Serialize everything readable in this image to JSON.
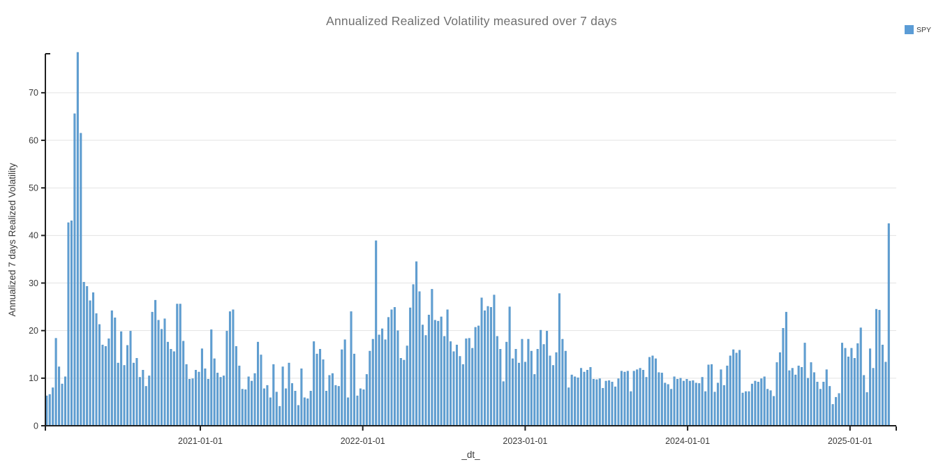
{
  "title": "Annualized Realized Volatility measured over 7 days",
  "legend": {
    "label": "SPY",
    "color": "#5b9cd6"
  },
  "chart_data": {
    "type": "bar",
    "series_name": "SPY",
    "title": "Annualized Realized Volatility measured over 7 days",
    "xlabel": "_dt_",
    "ylabel": "Annualized 7 days Realized Volatility",
    "x_start": "2020-01-20",
    "x_step_days": 7,
    "x_range": [
      "2020-01-17",
      "2025-04-15"
    ],
    "ylim": [
      0,
      78.2
    ],
    "yticks": [
      0,
      10,
      20,
      30,
      40,
      50,
      60,
      70
    ],
    "xticks": [
      "2021-01-01",
      "2022-01-01",
      "2023-01-01",
      "2024-01-01",
      "2025-01-01"
    ],
    "grid": true,
    "legend_position": "top-right",
    "bar_color": "#5f9ed2",
    "bar_edge_color": "#4c8dc0",
    "axis_color": "#1f1f1f",
    "grid_color": "#e3e3e3",
    "tick_label_color": "#3b3b3b",
    "values": [
      6.3,
      6.6,
      8.0,
      18.4,
      12.4,
      8.8,
      10.3,
      42.7,
      43.1,
      65.6,
      78.5,
      61.5,
      30.2,
      29.3,
      26.3,
      28.0,
      23.6,
      21.3,
      17.0,
      16.7,
      18.3,
      24.2,
      22.7,
      13.2,
      19.8,
      12.7,
      16.9,
      19.9,
      13.2,
      14.2,
      10.2,
      11.7,
      8.3,
      10.5,
      23.9,
      26.4,
      22.2,
      20.3,
      22.5,
      17.6,
      16.1,
      15.6,
      25.6,
      25.6,
      17.8,
      12.9,
      9.8,
      9.9,
      11.7,
      11.3,
      16.2,
      12.0,
      9.8,
      20.2,
      14.1,
      11.1,
      10.2,
      10.5,
      19.9,
      24.0,
      24.4,
      16.7,
      12.6,
      7.7,
      7.6,
      10.3,
      9.4,
      11.0,
      17.6,
      14.9,
      7.8,
      8.5,
      5.9,
      12.9,
      7.1,
      4.1,
      12.4,
      7.8,
      13.2,
      8.9,
      7.3,
      4.3,
      12.0,
      5.9,
      5.7,
      7.3,
      17.7,
      15.1,
      16.1,
      13.9,
      7.3,
      10.6,
      11.0,
      8.5,
      8.3,
      16.0,
      18.1,
      5.9,
      24.0,
      15.1,
      6.3,
      7.8,
      7.6,
      10.8,
      15.7,
      18.2,
      38.9,
      19.1,
      20.4,
      18.1,
      22.8,
      24.4,
      24.9,
      20.0,
      14.2,
      13.8,
      16.8,
      24.8,
      29.7,
      34.5,
      28.2,
      21.2,
      19.0,
      23.3,
      28.7,
      22.2,
      22.0,
      22.9,
      18.8,
      24.4,
      17.7,
      15.6,
      17.0,
      14.6,
      12.9,
      18.3,
      18.4,
      16.3,
      20.7,
      21.0,
      26.9,
      24.2,
      25.1,
      24.9,
      27.5,
      18.8,
      16.1,
      9.3,
      17.6,
      25.0,
      14.1,
      16.1,
      13.2,
      18.2,
      13.4,
      18.2,
      15.7,
      10.8,
      16.1,
      20.1,
      17.1,
      19.9,
      14.7,
      12.7,
      15.4,
      27.8,
      18.2,
      15.7,
      8.0,
      10.7,
      10.3,
      10.1,
      12.1,
      11.3,
      11.7,
      12.3,
      9.8,
      9.7,
      9.9,
      7.9,
      9.4,
      9.5,
      9.2,
      8.2,
      9.9,
      11.5,
      11.3,
      11.5,
      7.2,
      11.5,
      11.8,
      12.1,
      11.7,
      10.2,
      14.4,
      14.7,
      14.1,
      11.2,
      11.1,
      9.0,
      8.7,
      7.7,
      10.3,
      9.8,
      10.0,
      9.4,
      9.8,
      9.4,
      9.5,
      9.0,
      8.9,
      10.2,
      7.2,
      12.8,
      12.9,
      7.1,
      9.0,
      11.8,
      8.5,
      12.6,
      14.7,
      16.0,
      15.3,
      15.9,
      6.9,
      7.2,
      7.2,
      8.8,
      9.4,
      9.2,
      9.9,
      10.3,
      7.7,
      7.4,
      6.2,
      13.3,
      15.4,
      20.5,
      23.9,
      11.6,
      12.1,
      10.7,
      12.6,
      12.3,
      17.4,
      10.0,
      13.3,
      11.2,
      9.2,
      7.7,
      9.2,
      11.8,
      8.3,
      4.5,
      6.0,
      6.8,
      17.4,
      16.3,
      14.5,
      16.3,
      14.2,
      17.3,
      20.6,
      10.6,
      7.0,
      16.2,
      12.1,
      24.5,
      24.3,
      17.0,
      13.4,
      42.5
    ]
  }
}
